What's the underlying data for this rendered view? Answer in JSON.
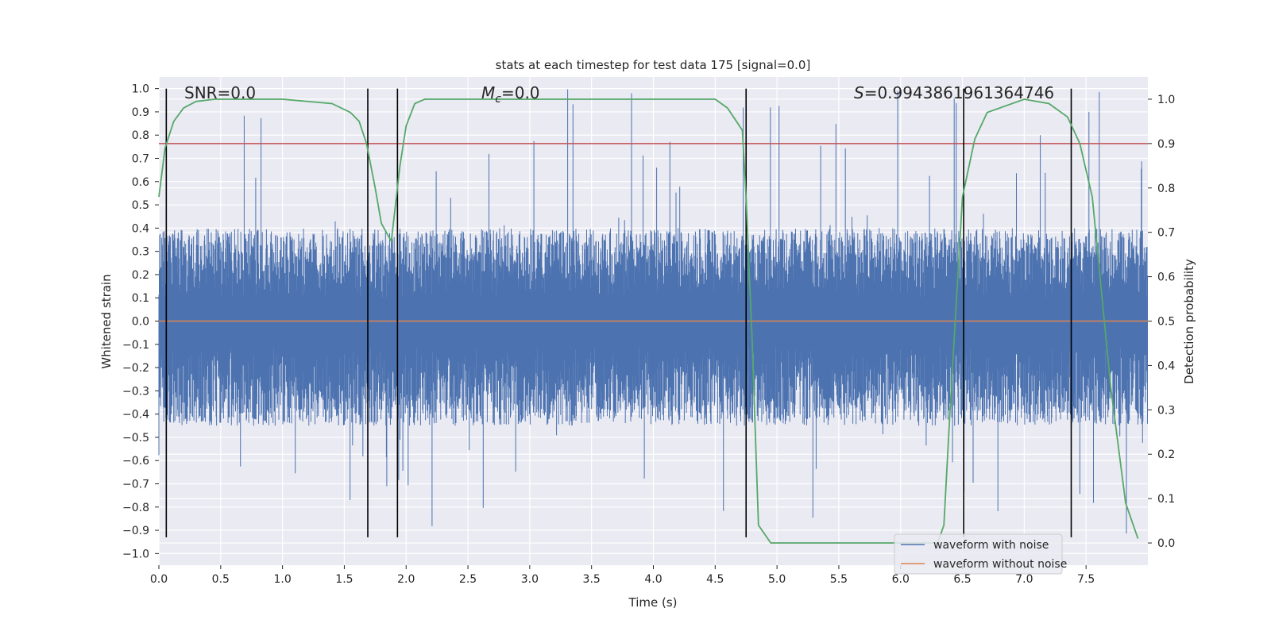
{
  "chart_data": {
    "type": "line",
    "title": "stats at each timestep for test data 175 [signal=0.0]",
    "xlabel": "Time (s)",
    "ylabel_left": "Whitened strain",
    "ylabel_right": "Detection probability",
    "xlim": [
      0.0,
      8.0
    ],
    "ylim_left": [
      -1.05,
      1.05
    ],
    "ylim_right": [
      -0.05,
      1.05
    ],
    "x_ticks": [
      "0.0",
      "0.5",
      "1.0",
      "1.5",
      "2.0",
      "2.5",
      "3.0",
      "3.5",
      "4.0",
      "4.5",
      "5.0",
      "5.5",
      "6.0",
      "6.5",
      "7.0",
      "7.5"
    ],
    "y_left_ticks": [
      "1.0",
      "0.9",
      "0.8",
      "0.7",
      "0.6",
      "0.5",
      "0.4",
      "0.3",
      "0.2",
      "0.1",
      "0.0",
      "−0.1",
      "−0.2",
      "−0.3",
      "−0.4",
      "−0.5",
      "−0.6",
      "−0.7",
      "−0.8",
      "−0.9",
      "−1.0"
    ],
    "y_right_ticks": [
      "1.0",
      "0.9",
      "0.8",
      "0.7",
      "0.6",
      "0.5",
      "0.4",
      "0.3",
      "0.2",
      "0.1",
      "0.0"
    ],
    "annotations": {
      "snr": "SNR=0.0",
      "mc_symbol": "M",
      "mc_sub": "c",
      "mc_value": "=0.0",
      "s_symbol": "S",
      "s_value": "=0.9943861961364746"
    },
    "series": [
      {
        "name": "waveform with noise",
        "color": "#4c72b0",
        "axis": "left",
        "envelope_positive": 0.4,
        "envelope_negative": -0.45,
        "peak_max": 1.0,
        "peak_min": -0.93
      },
      {
        "name": "waveform without noise",
        "color": "#dd8452",
        "axis": "left",
        "y": 0.0
      },
      {
        "name": "detection probability",
        "color": "#55a868",
        "axis": "right",
        "x": [
          0.0,
          0.05,
          0.12,
          0.2,
          0.3,
          0.45,
          0.6,
          1.0,
          1.4,
          1.55,
          1.62,
          1.68,
          1.75,
          1.8,
          1.88,
          1.95,
          2.0,
          2.07,
          2.15,
          3.0,
          4.5,
          4.6,
          4.72,
          4.75,
          4.8,
          4.85,
          4.95,
          5.5,
          6.3,
          6.35,
          6.4,
          6.5,
          6.6,
          6.7,
          7.0,
          7.2,
          7.35,
          7.45,
          7.55,
          7.7,
          7.82,
          7.92
        ],
        "y": [
          0.78,
          0.89,
          0.95,
          0.98,
          0.995,
          1.0,
          1.0,
          1.0,
          0.99,
          0.97,
          0.95,
          0.9,
          0.8,
          0.72,
          0.68,
          0.85,
          0.94,
          0.99,
          1.0,
          1.0,
          1.0,
          0.98,
          0.93,
          0.78,
          0.45,
          0.04,
          0.0,
          0.0,
          0.0,
          0.04,
          0.3,
          0.78,
          0.91,
          0.97,
          1.0,
          0.99,
          0.96,
          0.9,
          0.78,
          0.35,
          0.09,
          0.01
        ]
      }
    ],
    "threshold": {
      "axis": "right",
      "y": 0.9,
      "color": "#c44e52"
    },
    "vertical_markers": {
      "x": [
        0.06,
        1.69,
        1.93,
        4.75,
        6.51,
        7.38
      ],
      "y_range": [
        -0.93,
        1.0
      ],
      "color": "#000000"
    },
    "legend_placement": "bottom-right",
    "grid": true
  }
}
